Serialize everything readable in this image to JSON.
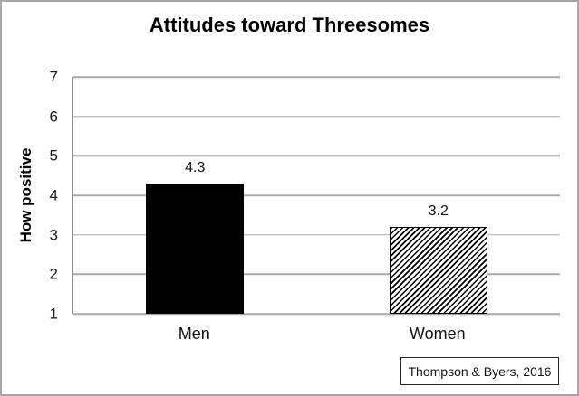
{
  "chart_data": {
    "type": "bar",
    "title": "Attitudes toward Threesomes",
    "ylabel": "How positive",
    "xlabel": "",
    "categories": [
      "Men",
      "Women"
    ],
    "values": [
      4.3,
      3.2
    ],
    "value_labels": [
      "4.3",
      "3.2"
    ],
    "bar_styles": [
      "solid-black",
      "diagonal-hatch"
    ],
    "ylim": [
      1,
      7
    ],
    "yticks": [
      7,
      6,
      5,
      4,
      3,
      2,
      1
    ],
    "grid": "horizontal-on",
    "legend": "none",
    "source": "Thompson & Byers, 2016",
    "colors": {
      "bar_fill_men": "#000000",
      "hatch_foreground_women": "#000000",
      "hatch_background_women": "#ffffff",
      "gridline": "#a8a8a8",
      "axis_line": "#8e8e8e",
      "frame_border": "#a6a6a6",
      "text": "#000000"
    }
  }
}
